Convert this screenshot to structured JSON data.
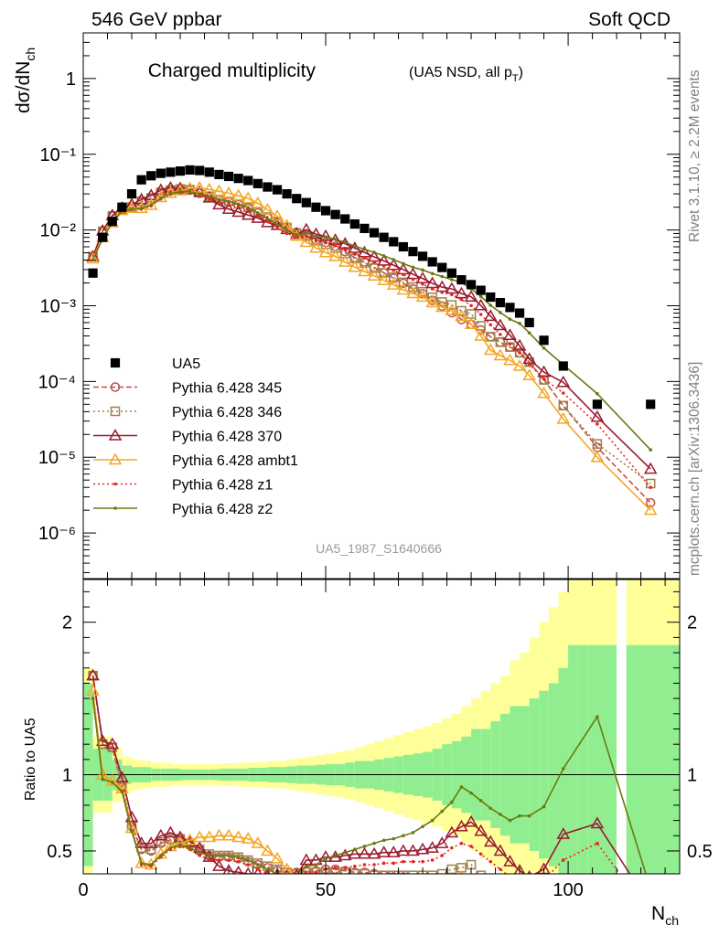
{
  "header": {
    "left": "546 GeV ppbar",
    "right": "Soft QCD"
  },
  "side_labels": {
    "right_top": "Rivet 3.1.10, ≥ 2.2M events",
    "right_bottom": "mcplots.cern.ch [arXiv:1306.3436]"
  },
  "chart_data": [
    {
      "type": "scatter",
      "panel": "main",
      "title": "Charged multiplicity",
      "title_note": "(UA5 NSD, all p",
      "title_note_sub": "T",
      "title_note_close": ")",
      "ylabel_main": "dσ/dN",
      "ylabel_sub": "ch",
      "watermark": "UA5_1987_S1640666",
      "log_y": true,
      "xlim": [
        0,
        123
      ],
      "ylim": [
        2.5e-07,
        4
      ],
      "y_tick_labels": [
        "1",
        "10⁻¹",
        "10⁻²",
        "10⁻³",
        "10⁻⁴",
        "10⁻⁵",
        "10⁻⁶"
      ],
      "y_tick_values": [
        1,
        0.1,
        0.01,
        0.001,
        0.0001,
        1e-05,
        1e-06
      ],
      "legend_position": "bottom-left",
      "legend": [
        {
          "label": "UA5",
          "color": "#000000",
          "marker": "square-filled",
          "line": "none"
        },
        {
          "label": "Pythia 6.428 345",
          "color": "#c0504d",
          "marker": "circle",
          "line": "dashed"
        },
        {
          "label": "Pythia 6.428 346",
          "color": "#a0804a",
          "marker": "square",
          "line": "dotted"
        },
        {
          "label": "Pythia 6.428 370",
          "color": "#9b1b30",
          "marker": "triangle",
          "line": "solid"
        },
        {
          "label": "Pythia 6.428 ambt1",
          "color": "#f5a623",
          "marker": "triangle",
          "line": "solid"
        },
        {
          "label": "Pythia 6.428 z1",
          "color": "#e8261f",
          "marker": "dot",
          "line": "dotted"
        },
        {
          "label": "Pythia 6.428 z2",
          "color": "#6b7a10",
          "marker": "dot",
          "line": "solid"
        }
      ],
      "data_x": [
        2,
        4,
        6,
        8,
        10,
        12,
        14,
        16,
        18,
        20,
        22,
        24,
        26,
        28,
        30,
        32,
        34,
        36,
        38,
        40,
        42,
        44,
        46,
        48,
        50,
        52,
        54,
        56,
        58,
        60,
        62,
        64,
        66,
        68,
        70,
        72,
        74,
        76,
        78,
        80,
        82,
        84,
        86,
        88,
        90,
        92,
        95,
        99,
        106,
        117
      ],
      "data_y": [
        0.0027,
        0.008,
        0.013,
        0.02,
        0.03,
        0.046,
        0.052,
        0.056,
        0.058,
        0.06,
        0.062,
        0.061,
        0.058,
        0.054,
        0.051,
        0.048,
        0.045,
        0.041,
        0.037,
        0.034,
        0.03,
        0.026,
        0.023,
        0.02,
        0.018,
        0.016,
        0.014,
        0.012,
        0.0105,
        0.0092,
        0.008,
        0.007,
        0.006,
        0.0052,
        0.0045,
        0.0038,
        0.0032,
        0.0027,
        0.0022,
        0.0019,
        0.0016,
        0.0013,
        0.0011,
        0.00095,
        0.0008,
        0.0006,
        0.00035,
        0.00016,
        5e-05,
        5e-05
      ],
      "mc_x": [
        2,
        4,
        6,
        8,
        10,
        12,
        14,
        16,
        18,
        20,
        22,
        24,
        26,
        28,
        30,
        32,
        34,
        36,
        38,
        40,
        42,
        44,
        46,
        48,
        50,
        52,
        54,
        56,
        58,
        60,
        62,
        64,
        66,
        68,
        70,
        72,
        74,
        76,
        78,
        80,
        82,
        84,
        86,
        88,
        90,
        92,
        95,
        99,
        106,
        117
      ],
      "series": [
        {
          "name": "Pythia 6.428 345",
          "ratio": [
            1.65,
            1.2,
            1.18,
            0.92,
            0.66,
            0.51,
            0.5,
            0.55,
            0.57,
            0.57,
            0.54,
            0.5,
            0.47,
            0.46,
            0.46,
            0.45,
            0.43,
            0.41,
            0.39,
            0.37,
            0.36,
            0.36,
            0.37,
            0.37,
            0.38,
            0.38,
            0.37,
            0.36,
            0.36,
            0.35,
            0.34,
            0.33,
            0.33,
            0.32,
            0.32,
            0.31,
            0.31,
            0.3,
            0.3,
            0.3,
            0.3,
            0.3,
            0.3,
            0.3,
            0.3,
            0.3,
            0.3,
            0.3,
            0.27,
            0.05
          ]
        },
        {
          "name": "Pythia 6.428 346",
          "ratio": [
            1.65,
            1.2,
            1.18,
            0.93,
            0.67,
            0.52,
            0.51,
            0.56,
            0.58,
            0.58,
            0.55,
            0.51,
            0.48,
            0.47,
            0.47,
            0.46,
            0.44,
            0.42,
            0.4,
            0.38,
            0.36,
            0.35,
            0.36,
            0.36,
            0.36,
            0.36,
            0.35,
            0.35,
            0.35,
            0.34,
            0.34,
            0.34,
            0.34,
            0.34,
            0.34,
            0.34,
            0.35,
            0.38,
            0.39,
            0.41,
            0.34,
            0.3,
            0.3,
            0.3,
            0.3,
            0.3,
            0.3,
            0.3,
            0.3,
            0.09
          ]
        },
        {
          "name": "Pythia 6.428 370",
          "ratio": [
            1.65,
            1.22,
            1.2,
            0.98,
            0.72,
            0.55,
            0.55,
            0.6,
            0.62,
            0.59,
            0.56,
            0.52,
            0.46,
            0.4,
            0.37,
            0.36,
            0.35,
            0.35,
            0.34,
            0.34,
            0.34,
            0.34,
            0.44,
            0.44,
            0.46,
            0.46,
            0.47,
            0.48,
            0.48,
            0.48,
            0.49,
            0.49,
            0.5,
            0.5,
            0.51,
            0.52,
            0.55,
            0.62,
            0.66,
            0.69,
            0.63,
            0.56,
            0.5,
            0.43,
            0.37,
            0.33,
            0.38,
            0.61,
            0.68,
            0.14
          ]
        },
        {
          "name": "Pythia 6.428 ambt1",
          "ratio": [
            1.55,
            1.0,
            0.96,
            0.91,
            0.65,
            0.42,
            0.41,
            0.48,
            0.53,
            0.55,
            0.57,
            0.59,
            0.59,
            0.6,
            0.6,
            0.59,
            0.58,
            0.55,
            0.5,
            0.45,
            0.38,
            0.32,
            0.3,
            0.29,
            0.28,
            0.28,
            0.27,
            0.27,
            0.27,
            0.27,
            0.27,
            0.27,
            0.27,
            0.28,
            0.29,
            0.29,
            0.3,
            0.32,
            0.33,
            0.3,
            0.25,
            0.2,
            0.2,
            0.2,
            0.2,
            0.2,
            0.2,
            0.2,
            0.2,
            0.04
          ]
        },
        {
          "name": "Pythia 6.428 z1",
          "ratio": [
            1.5,
            0.97,
            0.95,
            0.89,
            0.63,
            0.41,
            0.4,
            0.46,
            0.51,
            0.53,
            0.51,
            0.47,
            0.44,
            0.44,
            0.44,
            0.43,
            0.41,
            0.38,
            0.35,
            0.32,
            0.3,
            0.31,
            0.36,
            0.36,
            0.38,
            0.39,
            0.39,
            0.4,
            0.41,
            0.41,
            0.42,
            0.42,
            0.43,
            0.43,
            0.43,
            0.44,
            0.47,
            0.52,
            0.55,
            0.53,
            0.48,
            0.43,
            0.38,
            0.33,
            0.3,
            0.28,
            0.31,
            0.44,
            0.55,
            0.08
          ]
        },
        {
          "name": "Pythia 6.428 z2",
          "ratio": [
            1.5,
            0.97,
            0.95,
            0.89,
            0.63,
            0.42,
            0.41,
            0.47,
            0.52,
            0.54,
            0.52,
            0.49,
            0.47,
            0.47,
            0.47,
            0.46,
            0.44,
            0.41,
            0.38,
            0.35,
            0.33,
            0.33,
            0.4,
            0.41,
            0.45,
            0.47,
            0.49,
            0.51,
            0.53,
            0.55,
            0.57,
            0.58,
            0.6,
            0.62,
            0.66,
            0.7,
            0.76,
            0.82,
            0.92,
            0.88,
            0.83,
            0.78,
            0.74,
            0.7,
            0.73,
            0.73,
            0.79,
            1.04,
            1.38,
            0.25
          ]
        }
      ]
    },
    {
      "type": "scatter",
      "panel": "ratio",
      "ylabel": "Ratio to UA5",
      "xlabel_main": "N",
      "xlabel_sub": "ch",
      "xlim": [
        0,
        123
      ],
      "ylim": [
        0.35,
        2.3
      ],
      "x_tick_labels": [
        "0",
        "50",
        "100"
      ],
      "x_tick_values": [
        0,
        50,
        100
      ],
      "y_tick_labels": [
        "0.5",
        "1",
        "2"
      ],
      "y_tick_values": [
        0.5,
        1,
        2
      ],
      "reference_line": 1,
      "band_bin_edges": [
        0,
        2,
        4,
        6,
        8,
        10,
        12,
        14,
        16,
        18,
        20,
        22,
        24,
        26,
        28,
        30,
        32,
        34,
        36,
        38,
        40,
        42,
        44,
        46,
        48,
        50,
        52,
        54,
        56,
        58,
        60,
        62,
        64,
        66,
        68,
        70,
        72,
        74,
        76,
        78,
        80,
        82,
        84,
        86,
        88,
        90,
        92,
        94,
        96,
        98,
        100,
        102,
        104,
        110,
        112,
        123
      ],
      "band_inner_halfwidth": [
        0.6,
        0.17,
        0.17,
        0.1,
        0.06,
        0.05,
        0.05,
        0.04,
        0.04,
        0.04,
        0.035,
        0.035,
        0.035,
        0.035,
        0.04,
        0.04,
        0.04,
        0.045,
        0.045,
        0.05,
        0.05,
        0.055,
        0.06,
        0.06,
        0.065,
        0.07,
        0.07,
        0.08,
        0.09,
        0.09,
        0.1,
        0.11,
        0.12,
        0.13,
        0.14,
        0.15,
        0.17,
        0.2,
        0.22,
        0.25,
        0.3,
        0.3,
        0.35,
        0.4,
        0.45,
        0.45,
        0.5,
        0.55,
        0.6,
        0.7,
        0.85,
        0.85,
        0.85,
        0.0,
        0.85
      ],
      "band_outer_halfwidth": [
        0.7,
        0.25,
        0.25,
        0.18,
        0.12,
        0.1,
        0.09,
        0.08,
        0.08,
        0.07,
        0.07,
        0.07,
        0.07,
        0.07,
        0.075,
        0.075,
        0.08,
        0.08,
        0.085,
        0.09,
        0.09,
        0.1,
        0.11,
        0.12,
        0.13,
        0.14,
        0.15,
        0.16,
        0.18,
        0.2,
        0.22,
        0.24,
        0.26,
        0.28,
        0.3,
        0.32,
        0.34,
        0.37,
        0.4,
        0.45,
        0.5,
        0.55,
        0.6,
        0.65,
        0.75,
        0.8,
        0.9,
        1.0,
        1.1,
        1.2,
        1.3,
        1.3,
        1.3,
        0.0,
        1.3
      ],
      "band_inner_color": "#90ee90",
      "band_outer_color": "#ffff99"
    }
  ]
}
